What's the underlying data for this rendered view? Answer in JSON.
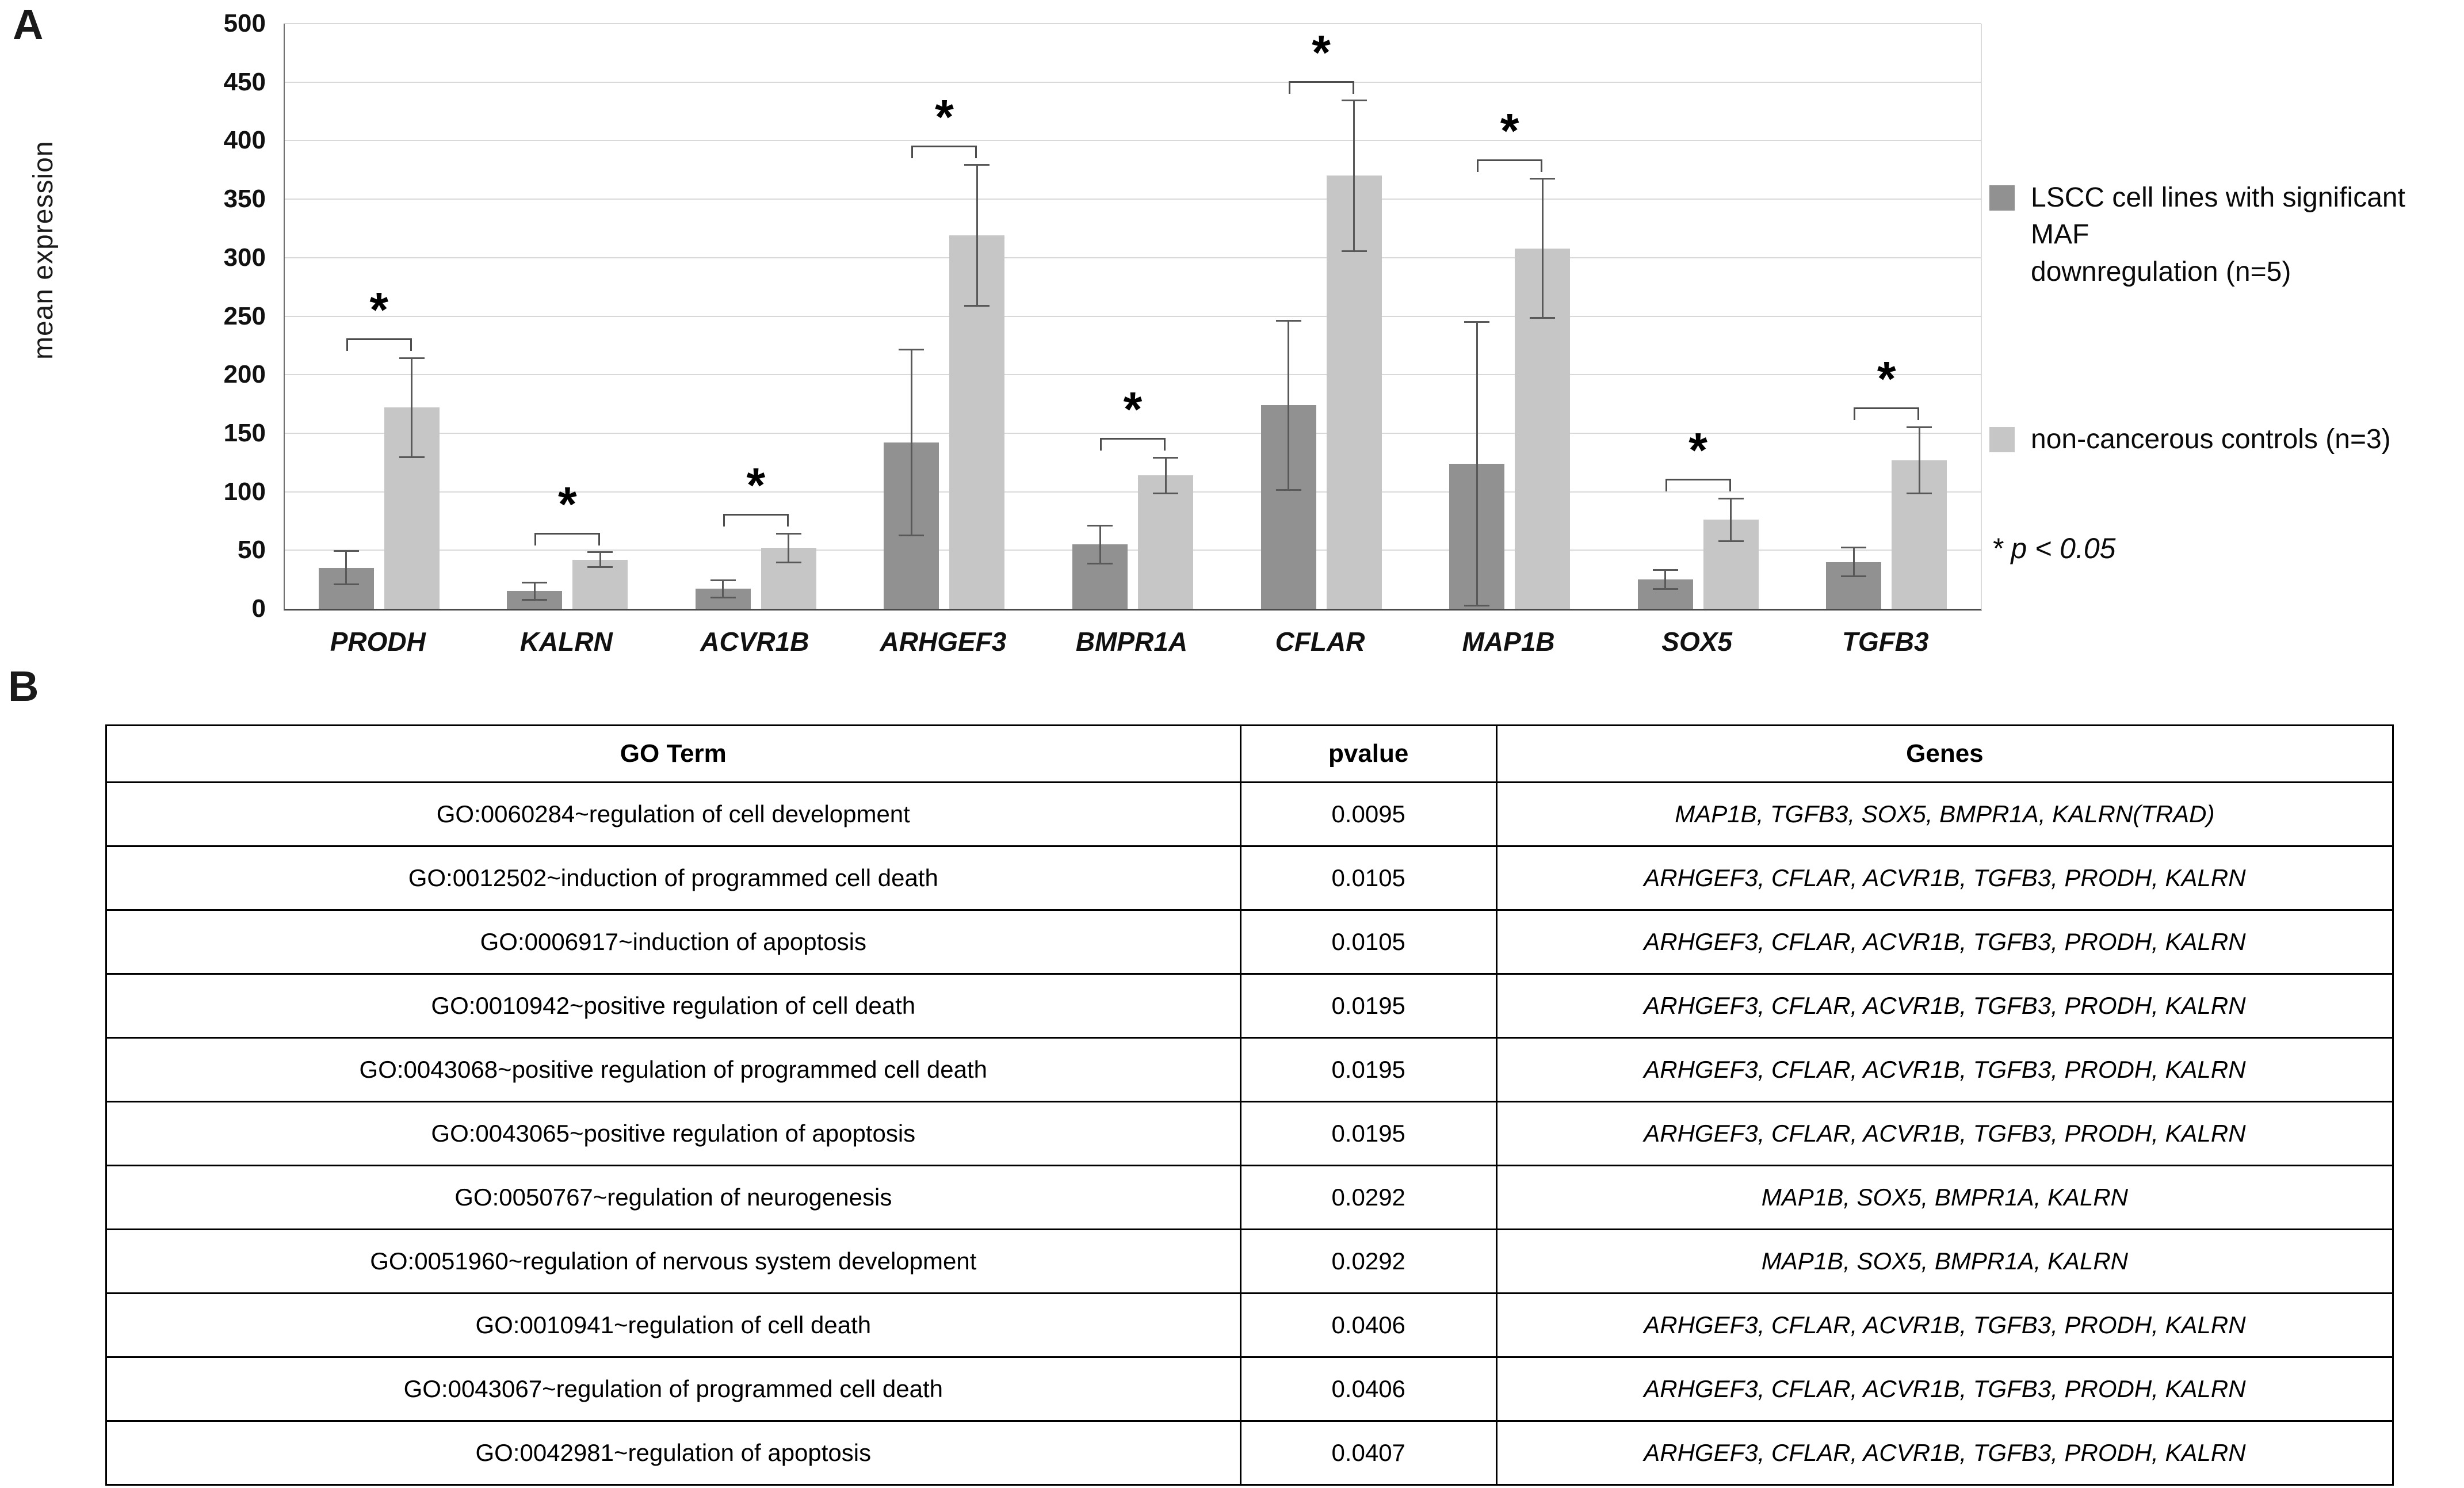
{
  "panels": {
    "a": "A",
    "b": "B"
  },
  "chart_data": {
    "type": "bar",
    "title": "",
    "xlabel": "",
    "ylabel": "mean expression",
    "ylim": [
      0,
      500
    ],
    "ytick_step": 50,
    "grid": true,
    "legend_position": "right",
    "sig_symbol": "*",
    "categories": [
      "PRODH",
      "KALRN",
      "ACVR1B",
      "ARHGEF3",
      "BMPR1A",
      "CFLAR",
      "MAP1B",
      "SOX5",
      "TGFB3"
    ],
    "series": [
      {
        "name": "LSCC cell lines with significant MAF downregulation (n=5)",
        "color": "#919191",
        "values": [
          35,
          15,
          17,
          142,
          55,
          174,
          124,
          25,
          40
        ],
        "errors": [
          15,
          8,
          8,
          80,
          17,
          73,
          122,
          9,
          13
        ]
      },
      {
        "name": "non-cancerous controls (n=3)",
        "color": "#c6c6c6",
        "values": [
          172,
          42,
          52,
          319,
          114,
          370,
          308,
          76,
          127
        ],
        "errors": [
          43,
          7,
          13,
          61,
          16,
          65,
          60,
          19,
          29
        ]
      }
    ],
    "significance": [
      true,
      true,
      true,
      true,
      true,
      true,
      true,
      true,
      true
    ]
  },
  "legend": {
    "items": [
      {
        "label": "LSCC cell lines with significant MAF\ndownregulation (n=5)",
        "color": "#919191"
      },
      {
        "label": "non-cancerous controls (n=3)",
        "color": "#c6c6c6"
      }
    ],
    "note": "* p < 0.05"
  },
  "table": {
    "columns": [
      "GO Term",
      "pvalue",
      "Genes"
    ],
    "rows": [
      {
        "term": "GO:0060284~regulation of cell development",
        "pvalue": "0.0095",
        "genes": "MAP1B, TGFB3, SOX5, BMPR1A, KALRN(TRAD)"
      },
      {
        "term": "GO:0012502~induction of programmed cell death",
        "pvalue": "0.0105",
        "genes": "ARHGEF3, CFLAR, ACVR1B, TGFB3, PRODH, KALRN"
      },
      {
        "term": "GO:0006917~induction of apoptosis",
        "pvalue": "0.0105",
        "genes": "ARHGEF3, CFLAR, ACVR1B, TGFB3, PRODH, KALRN"
      },
      {
        "term": "GO:0010942~positive regulation of cell death",
        "pvalue": "0.0195",
        "genes": "ARHGEF3, CFLAR, ACVR1B, TGFB3, PRODH, KALRN"
      },
      {
        "term": "GO:0043068~positive regulation of programmed cell death",
        "pvalue": "0.0195",
        "genes": "ARHGEF3, CFLAR, ACVR1B, TGFB3, PRODH, KALRN"
      },
      {
        "term": "GO:0043065~positive regulation of apoptosis",
        "pvalue": "0.0195",
        "genes": "ARHGEF3, CFLAR, ACVR1B, TGFB3, PRODH, KALRN"
      },
      {
        "term": "GO:0050767~regulation of neurogenesis",
        "pvalue": "0.0292",
        "genes": "MAP1B, SOX5, BMPR1A, KALRN"
      },
      {
        "term": "GO:0051960~regulation of nervous system development",
        "pvalue": "0.0292",
        "genes": "MAP1B, SOX5, BMPR1A, KALRN"
      },
      {
        "term": "GO:0010941~regulation of cell death",
        "pvalue": "0.0406",
        "genes": "ARHGEF3, CFLAR, ACVR1B, TGFB3, PRODH, KALRN"
      },
      {
        "term": "GO:0043067~regulation of programmed cell death",
        "pvalue": "0.0406",
        "genes": "ARHGEF3, CFLAR, ACVR1B, TGFB3, PRODH, KALRN"
      },
      {
        "term": "GO:0042981~regulation of apoptosis",
        "pvalue": "0.0407",
        "genes": "ARHGEF3, CFLAR, ACVR1B, TGFB3, PRODH, KALRN"
      }
    ]
  }
}
